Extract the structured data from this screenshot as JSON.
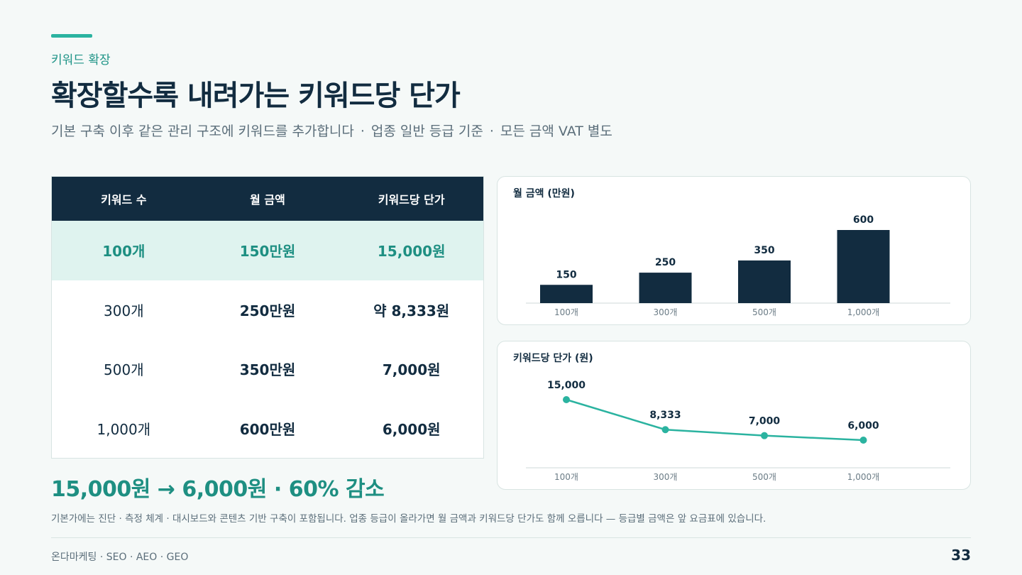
{
  "header": {
    "eyebrow": "키워드 확장",
    "title": "확장할수록 내려가는 키워드당 단가",
    "subtitle": [
      "기본 구축 이후 같은 관리 구조에 키워드를 추가합니다",
      "업종 일반 등급 기준",
      "모든 금액 VAT 별도"
    ],
    "subtitle_separator": "·"
  },
  "table": {
    "headers": [
      "키워드 수",
      "월 금액",
      "키워드당 단가"
    ],
    "rows": [
      [
        "100개",
        "150만원",
        "15,000원"
      ],
      [
        "300개",
        "250만원",
        "약 8,333원"
      ],
      [
        "500개",
        "350만원",
        "7,000원"
      ],
      [
        "1,000개",
        "600만원",
        "6,000원"
      ]
    ],
    "highlight_row": 0
  },
  "summary": {
    "from_to": "15,000원 → 6,000원",
    "separator": "·",
    "change": "60% 감소"
  },
  "footnote": "기본가에는 진단 · 측정 체계 · 대시보드와 콘텐츠 기반 구축이 포함됩니다. 업종 등급이 올라가면 월 금액과 키워드당 단가도 함께 오릅니다 — 등급별 금액은 앞 요금표에 있습니다.",
  "footer": {
    "left": "온다마케팅 · SEO · AEO · GEO",
    "page": "33"
  },
  "colors": {
    "navy": "#122c40",
    "teal": "#2bb3a0",
    "teal_text": "#1e8f82",
    "highlight_bg": "#dff3ef"
  },
  "chart_data": [
    {
      "type": "bar",
      "title": "월 금액 (만원)",
      "categories": [
        "100개",
        "300개",
        "500개",
        "1,000개"
      ],
      "values": [
        150,
        250,
        350,
        600
      ],
      "data_labels": [
        "150",
        "250",
        "350",
        "600"
      ],
      "ylim": [
        0,
        600
      ],
      "grid": false,
      "color": "#122c40"
    },
    {
      "type": "line",
      "title": "키워드당 단가 (원)",
      "categories": [
        "100개",
        "300개",
        "500개",
        "1,000개"
      ],
      "values": [
        15000,
        8333,
        7000,
        6000
      ],
      "data_labels": [
        "15,000",
        "8,333",
        "7,000",
        "6,000"
      ],
      "ylim": [
        0,
        15000
      ],
      "grid": false,
      "color": "#2bb3a0"
    }
  ]
}
